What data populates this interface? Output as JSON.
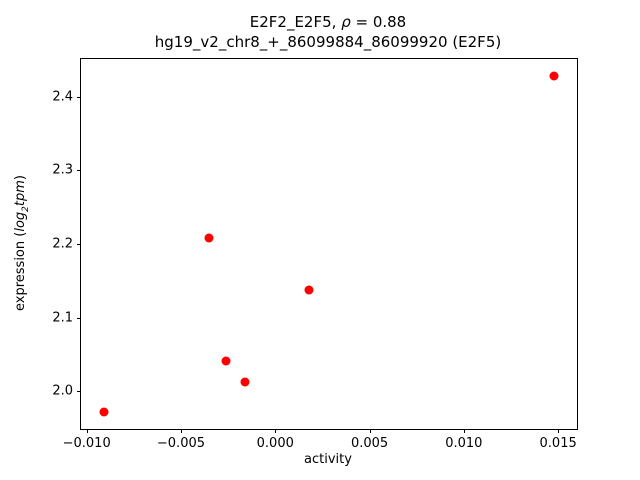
{
  "title": {
    "line1_prefix": "E2F2_E2F5, ",
    "line1_rho": "ρ",
    "line1_suffix": " = 0.88",
    "line2": "hg19_v2_chr8_+_86099884_86099920 (E2F5)"
  },
  "axes": {
    "xlabel": "activity",
    "ylabel_prefix": "expression (",
    "ylabel_log": "log",
    "ylabel_sub": "2",
    "ylabel_tpm": "tpm",
    "ylabel_suffix": ")"
  },
  "chart_data": {
    "type": "scatter",
    "title": "E2F2_E2F5, ρ = 0.88\nhg19_v2_chr8_+_86099884_86099920 (E2F5)",
    "xlabel": "activity",
    "ylabel": "expression (log2tpm)",
    "marker_color": "#ff0000",
    "grid": false,
    "legend": null,
    "xlim": [
      -0.0103,
      0.016
    ],
    "ylim": [
      1.949,
      2.451
    ],
    "xticks": [
      -0.01,
      -0.005,
      0.0,
      0.005,
      0.01,
      0.015
    ],
    "xtick_labels": [
      "−0.010",
      "−0.005",
      "0.000",
      "0.005",
      "0.010",
      "0.015"
    ],
    "yticks": [
      2.0,
      2.1,
      2.2,
      2.3,
      2.4
    ],
    "ytick_labels": [
      "2.0",
      "2.1",
      "2.2",
      "2.3",
      "2.4"
    ],
    "points": [
      {
        "x": -0.0091,
        "y": 1.972
      },
      {
        "x": -0.0035,
        "y": 2.208
      },
      {
        "x": -0.0026,
        "y": 2.041
      },
      {
        "x": -0.0016,
        "y": 2.013
      },
      {
        "x": 0.0018,
        "y": 2.138
      },
      {
        "x": 0.0148,
        "y": 2.428
      }
    ]
  }
}
